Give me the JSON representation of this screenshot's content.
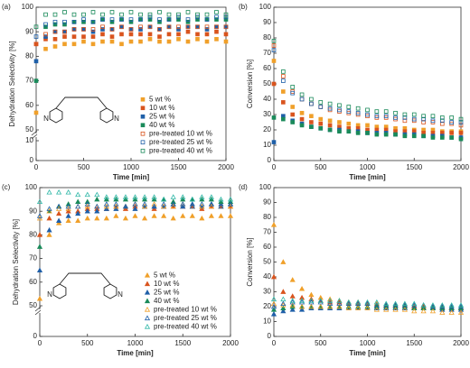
{
  "chart_data": [
    {
      "type": "scatter",
      "panel_label": "(a)",
      "ylabel": "Dehydration Selectivity [%]",
      "xlabel": "Time [min]",
      "marker": "square",
      "legend": "lower right",
      "structure_labels": [
        "N",
        "N"
      ],
      "x": [
        0,
        100,
        200,
        300,
        400,
        500,
        600,
        700,
        800,
        900,
        1000,
        1100,
        1200,
        1300,
        1400,
        1500,
        1600,
        1700,
        1800,
        1900,
        2000
      ],
      "xlim": [
        0,
        2000
      ],
      "xticks": [
        0,
        500,
        1000,
        1500,
        2000
      ],
      "ylim": [
        50,
        100
      ],
      "yticks": [
        50,
        60,
        70,
        80,
        90,
        100
      ],
      "ylim_break": [
        0,
        10
      ],
      "yticks_break": [
        0,
        10
      ],
      "series": [
        {
          "name": "5 wt %",
          "color": "#f0a02a",
          "filled": true,
          "values": [
            57,
            83,
            84,
            85,
            85,
            86,
            85,
            86,
            86,
            85,
            86,
            86,
            87,
            86,
            86,
            87,
            86,
            87,
            86,
            87,
            86
          ]
        },
        {
          "name": "10 wt %",
          "color": "#d9541e",
          "filled": true,
          "values": [
            85,
            87,
            87,
            88,
            88,
            88,
            88,
            89,
            88,
            89,
            89,
            89,
            89,
            88,
            89,
            89,
            90,
            89,
            89,
            90,
            89
          ]
        },
        {
          "name": "25 wt %",
          "color": "#1f5fa8",
          "filled": true,
          "values": [
            78,
            88,
            90,
            90,
            91,
            91,
            90,
            91,
            91,
            92,
            91,
            91,
            92,
            91,
            92,
            91,
            92,
            92,
            91,
            92,
            92
          ]
        },
        {
          "name": "40 wt %",
          "color": "#1a8a5a",
          "filled": true,
          "values": [
            70,
            92,
            93,
            93,
            94,
            94,
            94,
            95,
            94,
            95,
            94,
            95,
            95,
            94,
            95,
            95,
            94,
            95,
            95,
            95,
            95
          ]
        },
        {
          "name": "pre-treated 10 wt %",
          "color": "#d9541e",
          "filled": false,
          "values": [
            85,
            89,
            90,
            90,
            91,
            91,
            91,
            92,
            91,
            92,
            91,
            92,
            92,
            91,
            92,
            92,
            92,
            92,
            92,
            92,
            92
          ]
        },
        {
          "name": "pre-treated 25 wt %",
          "color": "#1f5fa8",
          "filled": false,
          "values": [
            88,
            93,
            94,
            94,
            94,
            95,
            94,
            95,
            95,
            95,
            95,
            95,
            96,
            95,
            95,
            96,
            95,
            96,
            95,
            96,
            96
          ]
        },
        {
          "name": "pre-treated 40 wt %",
          "color": "#1a8a5a",
          "filled": false,
          "values": [
            92,
            97,
            97,
            98,
            97,
            97,
            98,
            97,
            98,
            97,
            98,
            97,
            97,
            98,
            97,
            97,
            98,
            97,
            97,
            98,
            97
          ]
        }
      ]
    },
    {
      "type": "scatter",
      "panel_label": "(b)",
      "ylabel": "Conversion [%]",
      "xlabel": "Time [min]",
      "marker": "square",
      "x": [
        0,
        100,
        200,
        300,
        400,
        500,
        600,
        700,
        800,
        900,
        1000,
        1100,
        1200,
        1300,
        1400,
        1500,
        1600,
        1700,
        1800,
        1900,
        2000
      ],
      "xlim": [
        0,
        2000
      ],
      "xticks": [
        0,
        500,
        1000,
        1500,
        2000
      ],
      "ylim": [
        0,
        100
      ],
      "yticks": [
        0,
        10,
        20,
        30,
        40,
        50,
        60,
        70,
        80,
        90,
        100
      ],
      "series": [
        {
          "name": "5 wt %",
          "color": "#f0a02a",
          "filled": true,
          "values": [
            65,
            45,
            35,
            31,
            29,
            27,
            26,
            25,
            24,
            23,
            23,
            22,
            22,
            21,
            21,
            20,
            20,
            20,
            19,
            19,
            19
          ]
        },
        {
          "name": "10 wt %",
          "color": "#d9541e",
          "filled": true,
          "values": [
            50,
            38,
            30,
            27,
            25,
            24,
            23,
            22,
            21,
            21,
            20,
            20,
            20,
            19,
            19,
            19,
            18,
            18,
            18,
            18,
            18
          ]
        },
        {
          "name": "25 wt %",
          "color": "#1f5fa8",
          "filled": true,
          "values": [
            12,
            29,
            26,
            24,
            22,
            21,
            20,
            20,
            19,
            19,
            18,
            18,
            18,
            17,
            17,
            17,
            16,
            16,
            16,
            15,
            15
          ]
        },
        {
          "name": "40 wt %",
          "color": "#1a8a5a",
          "filled": true,
          "values": [
            28,
            27,
            25,
            23,
            22,
            21,
            20,
            19,
            19,
            18,
            18,
            17,
            17,
            17,
            16,
            16,
            16,
            15,
            15,
            15,
            14
          ]
        },
        {
          "name": "pre-treated 10 wt %",
          "color": "#d9541e",
          "filled": false,
          "values": [
            75,
            55,
            45,
            40,
            37,
            35,
            33,
            32,
            31,
            30,
            29,
            28,
            28,
            27,
            26,
            26,
            25,
            25,
            24,
            24,
            23
          ]
        },
        {
          "name": "pre-treated 25 wt %",
          "color": "#1f5fa8",
          "filled": false,
          "values": [
            72,
            52,
            44,
            40,
            37,
            35,
            34,
            33,
            32,
            31,
            30,
            29,
            29,
            28,
            28,
            27,
            27,
            26,
            26,
            25,
            25
          ]
        },
        {
          "name": "pre-treated 40 wt %",
          "color": "#1a8a5a",
          "filled": false,
          "values": [
            78,
            58,
            48,
            43,
            40,
            38,
            37,
            36,
            35,
            34,
            33,
            32,
            32,
            31,
            30,
            30,
            29,
            29,
            28,
            28,
            27
          ]
        }
      ]
    },
    {
      "type": "scatter",
      "panel_label": "(c)",
      "ylabel": "Dehydration Selectivity [%]",
      "xlabel": "Time [min]",
      "marker": "triangle",
      "legend": "lower right",
      "structure_labels": [
        "N",
        "N"
      ],
      "x": [
        0,
        100,
        200,
        300,
        400,
        500,
        600,
        700,
        800,
        900,
        1000,
        1100,
        1200,
        1300,
        1400,
        1500,
        1600,
        1700,
        1800,
        1900,
        2000
      ],
      "xlim": [
        0,
        2000
      ],
      "xticks": [
        0,
        500,
        1000,
        1500,
        2000
      ],
      "ylim": [
        50,
        100
      ],
      "yticks": [
        50,
        60,
        70,
        80,
        90,
        100
      ],
      "ylim_break": [
        0,
        10
      ],
      "yticks_break": [
        0
      ],
      "series": [
        {
          "name": "5 wt %",
          "color": "#f0a02a",
          "filled": true,
          "values": [
            53,
            80,
            85,
            86,
            86,
            87,
            87,
            87,
            88,
            87,
            88,
            87,
            88,
            88,
            87,
            88,
            88,
            87,
            88,
            88,
            88
          ]
        },
        {
          "name": "10 wt %",
          "color": "#d9541e",
          "filled": true,
          "values": [
            80,
            87,
            89,
            90,
            90,
            91,
            91,
            91,
            92,
            91,
            92,
            92,
            91,
            92,
            92,
            92,
            92,
            91,
            92,
            92,
            92
          ]
        },
        {
          "name": "25 wt %",
          "color": "#1f5fa8",
          "filled": true,
          "values": [
            65,
            82,
            86,
            88,
            89,
            90,
            90,
            91,
            91,
            92,
            91,
            92,
            92,
            92,
            93,
            92,
            93,
            92,
            93,
            93,
            93
          ]
        },
        {
          "name": "40 wt %",
          "color": "#1a8a5a",
          "filled": true,
          "values": [
            75,
            90,
            92,
            93,
            94,
            94,
            95,
            95,
            95,
            95,
            95,
            95,
            95,
            95,
            94,
            95,
            95,
            95,
            95,
            94,
            94
          ]
        },
        {
          "name": "pre-treated 10 wt %",
          "color": "#f0a02a",
          "filled": false,
          "values": [
            87,
            90,
            91,
            91,
            92,
            92,
            92,
            92,
            92,
            92,
            93,
            92,
            93,
            92,
            92,
            93,
            92,
            92,
            92,
            92,
            92
          ]
        },
        {
          "name": "pre-treated 25 wt %",
          "color": "#1f5fa8",
          "filled": false,
          "values": [
            88,
            91,
            92,
            92,
            92,
            93,
            92,
            93,
            93,
            92,
            93,
            93,
            92,
            93,
            93,
            93,
            92,
            93,
            93,
            92,
            93
          ]
        },
        {
          "name": "pre-treated 40 wt %",
          "color": "#30b8a8",
          "filled": false,
          "values": [
            94,
            98,
            98,
            98,
            97,
            97,
            97,
            96,
            96,
            96,
            96,
            96,
            96,
            95,
            96,
            96,
            95,
            96,
            96,
            95,
            95
          ]
        }
      ]
    },
    {
      "type": "scatter",
      "panel_label": "(d)",
      "ylabel": "Conversion [%]",
      "xlabel": "Time [min]",
      "marker": "triangle",
      "x": [
        0,
        100,
        200,
        300,
        400,
        500,
        600,
        700,
        800,
        900,
        1000,
        1100,
        1200,
        1300,
        1400,
        1500,
        1600,
        1700,
        1800,
        1900,
        2000
      ],
      "xlim": [
        0,
        2000
      ],
      "xticks": [
        0,
        500,
        1000,
        1500,
        2000
      ],
      "ylim": [
        0,
        100
      ],
      "yticks": [
        0,
        10,
        20,
        30,
        40,
        50,
        60,
        70,
        80,
        90,
        100
      ],
      "series": [
        {
          "name": "5 wt %",
          "color": "#f0a02a",
          "filled": true,
          "values": [
            75,
            50,
            38,
            32,
            28,
            26,
            25,
            24,
            23,
            23,
            22,
            22,
            21,
            21,
            21,
            20,
            20,
            20,
            19,
            19,
            19
          ]
        },
        {
          "name": "10 wt %",
          "color": "#d9541e",
          "filled": true,
          "values": [
            40,
            30,
            27,
            26,
            25,
            24,
            23,
            23,
            22,
            22,
            22,
            21,
            21,
            21,
            21,
            20,
            20,
            20,
            20,
            19,
            19
          ]
        },
        {
          "name": "25 wt %",
          "color": "#1f5fa8",
          "filled": true,
          "values": [
            15,
            17,
            18,
            18,
            19,
            19,
            19,
            19,
            19,
            19,
            19,
            19,
            19,
            19,
            19,
            19,
            19,
            19,
            18,
            18,
            18
          ]
        },
        {
          "name": "40 wt %",
          "color": "#1a8a5a",
          "filled": true,
          "values": [
            18,
            19,
            20,
            20,
            20,
            20,
            20,
            20,
            20,
            20,
            20,
            20,
            20,
            20,
            20,
            19,
            19,
            19,
            19,
            19,
            19
          ]
        },
        {
          "name": "pre-treated 10 wt %",
          "color": "#f0a02a",
          "filled": false,
          "values": [
            22,
            21,
            21,
            20,
            20,
            20,
            20,
            20,
            19,
            19,
            19,
            18,
            18,
            18,
            18,
            17,
            17,
            17,
            16,
            16,
            16
          ]
        },
        {
          "name": "pre-treated 25 wt %",
          "color": "#1f5fa8",
          "filled": false,
          "values": [
            20,
            22,
            23,
            23,
            23,
            23,
            22,
            22,
            22,
            22,
            22,
            21,
            21,
            21,
            21,
            21,
            21,
            20,
            20,
            20,
            20
          ]
        },
        {
          "name": "pre-treated 40 wt %",
          "color": "#30b8a8",
          "filled": false,
          "values": [
            25,
            25,
            24,
            24,
            24,
            24,
            24,
            24,
            23,
            23,
            23,
            23,
            22,
            22,
            22,
            22,
            21,
            21,
            21,
            21,
            21
          ]
        }
      ]
    }
  ]
}
